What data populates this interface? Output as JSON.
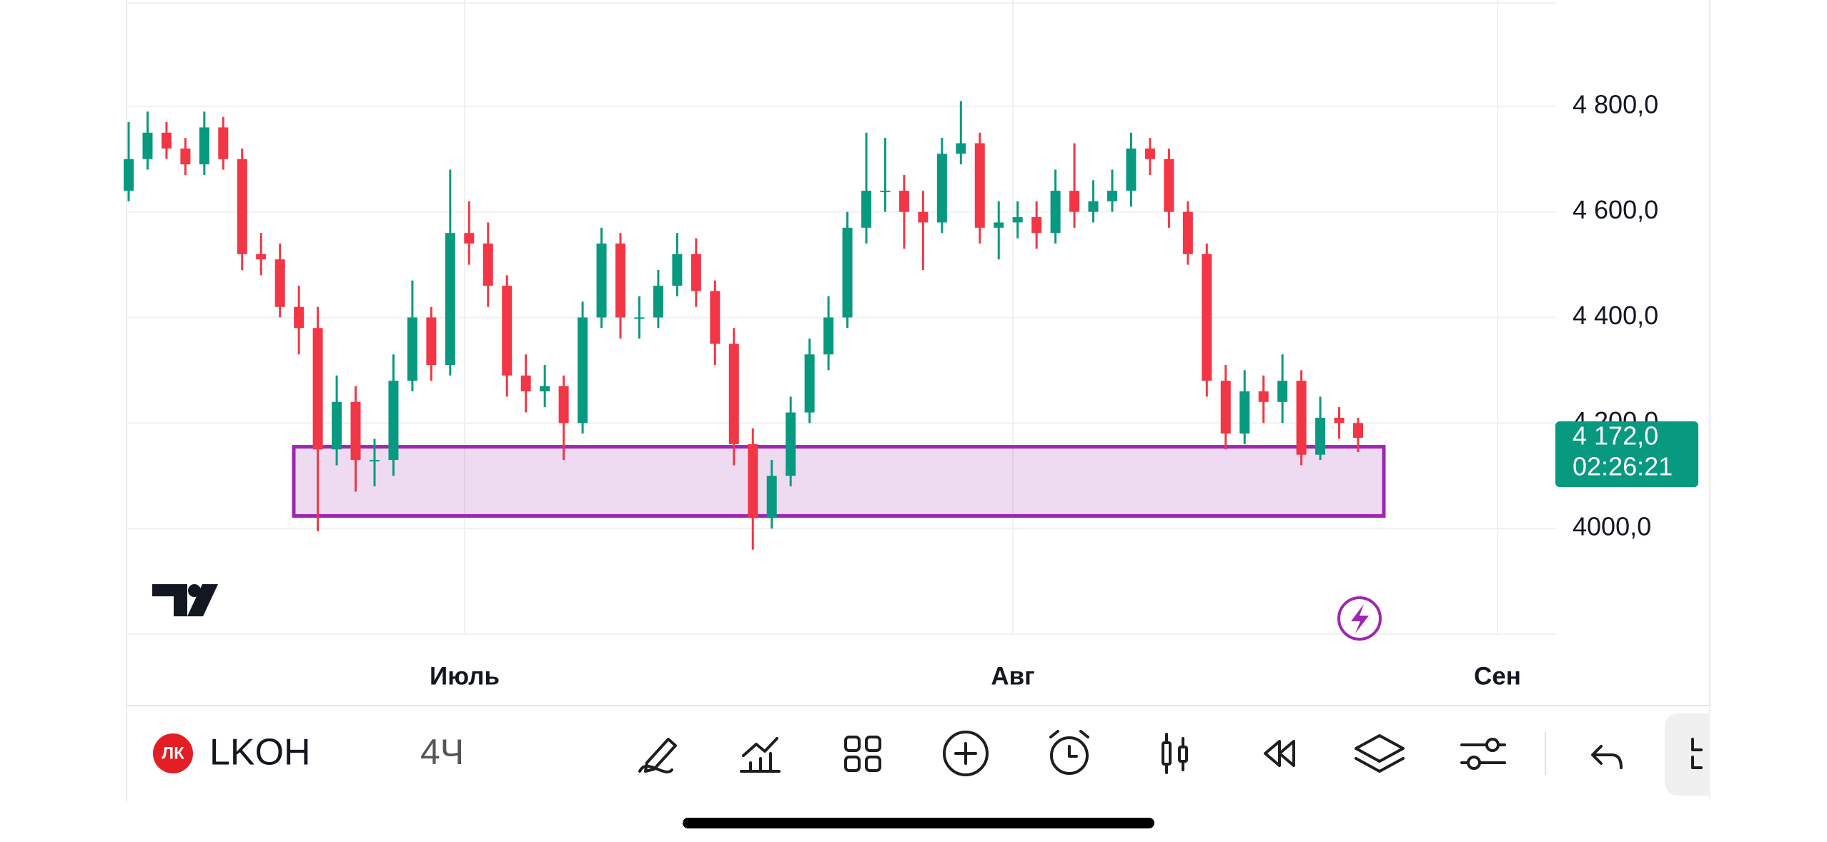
{
  "chart_data": {
    "type": "candlestick",
    "open": [
      4640,
      4700,
      4750,
      4720,
      4690,
      4760,
      4700,
      4520,
      4510,
      4420,
      4380,
      4150,
      4240,
      4130,
      4130,
      4280,
      4400,
      4310,
      4560,
      4540,
      4460,
      4290,
      4260,
      4270,
      4200,
      4400,
      4540,
      4400,
      4400,
      4460,
      4520,
      4450,
      4350,
      4160,
      4020,
      4100,
      4220,
      4330,
      4400,
      4570,
      4640,
      4640,
      4600,
      4580,
      4710,
      4730,
      4570,
      4580,
      4590,
      4560,
      4640,
      4600,
      4620,
      4640,
      4720,
      4700,
      4600,
      4520,
      4280,
      4180,
      4260,
      4240,
      4280,
      4140,
      4210,
      4200
    ],
    "high": [
      4770,
      4790,
      4770,
      4740,
      4790,
      4780,
      4720,
      4560,
      4540,
      4460,
      4420,
      4290,
      4270,
      4170,
      4330,
      4470,
      4420,
      4680,
      4620,
      4580,
      4480,
      4330,
      4310,
      4290,
      4430,
      4570,
      4560,
      4440,
      4490,
      4560,
      4550,
      4470,
      4380,
      4190,
      4130,
      4250,
      4360,
      4440,
      4600,
      4750,
      4740,
      4670,
      4640,
      4740,
      4810,
      4750,
      4620,
      4620,
      4620,
      4680,
      4730,
      4660,
      4680,
      4750,
      4740,
      4720,
      4620,
      4540,
      4310,
      4300,
      4290,
      4330,
      4300,
      4250,
      4230,
      4210
    ],
    "low": [
      4620,
      4680,
      4700,
      4670,
      4670,
      4680,
      4490,
      4480,
      4400,
      4330,
      3995,
      4120,
      4070,
      4080,
      4100,
      4260,
      4280,
      4290,
      4500,
      4420,
      4250,
      4220,
      4230,
      4130,
      4180,
      4380,
      4360,
      4360,
      4380,
      4440,
      4420,
      4310,
      4120,
      3960,
      4000,
      4080,
      4200,
      4300,
      4380,
      4540,
      4600,
      4530,
      4490,
      4560,
      4690,
      4540,
      4510,
      4550,
      4530,
      4540,
      4570,
      4580,
      4600,
      4610,
      4670,
      4570,
      4500,
      4250,
      4150,
      4160,
      4200,
      4200,
      4120,
      4130,
      4170,
      4145
    ],
    "close": [
      4700,
      4750,
      4720,
      4690,
      4760,
      4700,
      4520,
      4510,
      4420,
      4380,
      4150,
      4240,
      4130,
      4130,
      4280,
      4400,
      4310,
      4560,
      4540,
      4460,
      4290,
      4260,
      4270,
      4200,
      4400,
      4540,
      4400,
      4400,
      4460,
      4520,
      4450,
      4350,
      4160,
      4020,
      4100,
      4220,
      4330,
      4400,
      4570,
      4640,
      4640,
      4600,
      4580,
      4710,
      4730,
      4570,
      4580,
      4590,
      4560,
      4640,
      4600,
      4620,
      4640,
      4720,
      4700,
      4600,
      4520,
      4280,
      4180,
      4260,
      4240,
      4280,
      4140,
      4210,
      4200,
      4172
    ],
    "up_color": "#089981",
    "down_color": "#f23645",
    "ylim": [
      3800,
      5000
    ],
    "yticks": [
      {
        "value": 4000,
        "label": "4000,0"
      },
      {
        "value": 4200,
        "label": "4 200,0"
      },
      {
        "value": 4400,
        "label": "4 400,0"
      },
      {
        "value": 4600,
        "label": "4 600,0"
      },
      {
        "value": 4800,
        "label": "4 800,0"
      }
    ],
    "grid": true,
    "x_labels": [
      "Июль",
      "Авг",
      "Сен"
    ],
    "last_price": {
      "value": 4172,
      "label": "4 172,0"
    },
    "countdown": "02:26:21",
    "zone": {
      "top": 4155,
      "bottom": 4024,
      "color": "#9c27b0"
    }
  },
  "toolbar": {
    "symbol": "LKOH",
    "interval": "4Ч"
  }
}
